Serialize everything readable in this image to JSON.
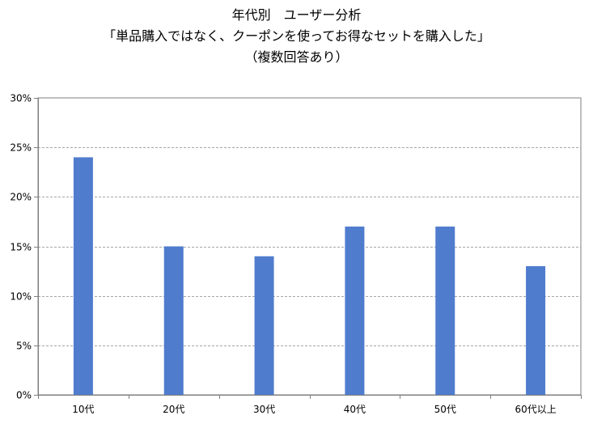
{
  "chart_data": {
    "type": "bar",
    "title_lines": [
      "年代別　ユーザー分析",
      "「単品購入ではなく、クーポンを使ってお得なセットを購入した」",
      "（複数回答あり）"
    ],
    "categories": [
      "10代",
      "20代",
      "30代",
      "40代",
      "50代",
      "60代以上"
    ],
    "values": [
      0.24,
      0.15,
      0.14,
      0.17,
      0.17,
      0.13
    ],
    "ylim": [
      0,
      0.3
    ],
    "y_ticks": [
      0,
      0.05,
      0.1,
      0.15,
      0.2,
      0.25,
      0.3
    ],
    "y_tick_labels": [
      "0%",
      "5%",
      "10%",
      "15%",
      "20%",
      "25%",
      "30%"
    ],
    "grid": true,
    "legend": "none",
    "bar_color": "#4f7ccd",
    "grid_color": "#a6a6a6",
    "axis_color": "#7f7f7f"
  }
}
